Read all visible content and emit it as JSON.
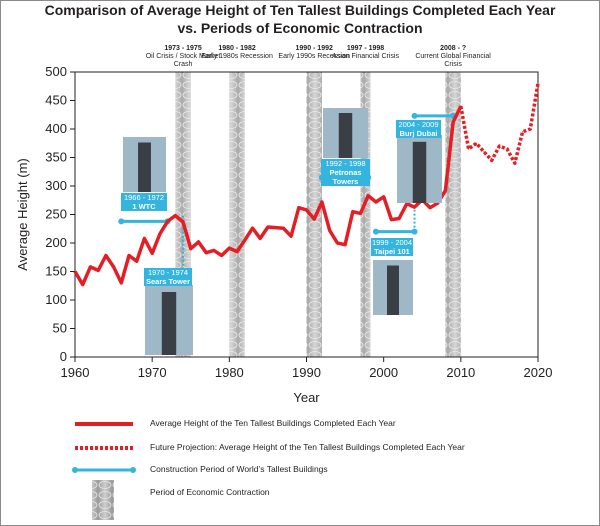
{
  "chart_data": {
    "type": "line",
    "title_line1": "Comparison of Average Height of Ten Tallest Buildings Completed Each Year",
    "title_line2": "vs. Periods of Economic Contraction",
    "xlabel": "Year",
    "ylabel": "Average Height (m)",
    "xlim": [
      1960,
      2020
    ],
    "ylim": [
      0,
      500
    ],
    "x_ticks": [
      "1960",
      "1970",
      "1980",
      "1990",
      "2000",
      "2010",
      "2020"
    ],
    "y_ticks": [
      "0",
      "50",
      "100",
      "150",
      "200",
      "250",
      "300",
      "350",
      "400",
      "450",
      "500"
    ],
    "series": [
      {
        "name": "Average Height of the Ten Tallest Buildings Completed Each Year",
        "color": "#e31e24",
        "style": "solid",
        "x": [
          1960,
          1961,
          1962,
          1963,
          1964,
          1965,
          1966,
          1967,
          1968,
          1969,
          1970,
          1971,
          1972,
          1973,
          1974,
          1975,
          1976,
          1977,
          1978,
          1979,
          1980,
          1981,
          1982,
          1983,
          1984,
          1985,
          1986,
          1987,
          1988,
          1989,
          1990,
          1991,
          1992,
          1993,
          1994,
          1995,
          1996,
          1997,
          1998,
          1999,
          2000,
          2001,
          2002,
          2003,
          2004,
          2005,
          2006,
          2007,
          2008,
          2009,
          2010
        ],
        "values": [
          150,
          127,
          158,
          152,
          178,
          158,
          130,
          178,
          168,
          208,
          182,
          216,
          238,
          248,
          237,
          190,
          202,
          183,
          187,
          178,
          191,
          185,
          205,
          226,
          208,
          228,
          227,
          226,
          212,
          262,
          258,
          242,
          272,
          222,
          200,
          197,
          255,
          252,
          283,
          272,
          281,
          241,
          243,
          269,
          263,
          276,
          262,
          270,
          292,
          412,
          440
        ]
      },
      {
        "name": "Future Projection: Average Height of the Ten Tallest Buildings Completed Each Year",
        "color": "#e31e24",
        "style": "dotted",
        "x": [
          2010,
          2011,
          2012,
          2013,
          2014,
          2015,
          2016,
          2017,
          2018,
          2019,
          2020
        ],
        "values": [
          440,
          365,
          375,
          360,
          345,
          370,
          365,
          340,
          395,
          400,
          480
        ]
      }
    ],
    "economic_contraction_periods": [
      {
        "label": "Oil Crisis / Stock Market Crash",
        "years": "1973 - 1975",
        "start": 1973,
        "end": 1975
      },
      {
        "label": "Early 1980s Recession",
        "years": "1980 - 1982",
        "start": 1980,
        "end": 1982
      },
      {
        "label": "Early 1990s Recession",
        "years": "1990 - 1992",
        "start": 1990,
        "end": 1992
      },
      {
        "label": "Asian Financial Crisis",
        "years": "1997 - 1998",
        "start": 1997,
        "end": 1998
      },
      {
        "label": "Current Global Financial Crisis",
        "years": "2008 - ?",
        "start": 2008,
        "end": 2010
      }
    ],
    "construction_periods": [
      {
        "building": "1 WTC",
        "years": "1966 - 1972",
        "start": 1966,
        "end": 1972,
        "height": 238
      },
      {
        "building": "Sears Tower",
        "years": "1970 - 1974",
        "start": 1970,
        "end": 1974,
        "height": 125
      },
      {
        "building": "Petronas Towers",
        "years": "1992 - 1998",
        "start": 1992,
        "end": 1998,
        "height": 315
      },
      {
        "building": "Taipei 101",
        "years": "1999 - 2004",
        "start": 1999,
        "end": 2004,
        "height": 220
      },
      {
        "building": "Burj Dubai",
        "years": "2004 - 2009",
        "start": 2004,
        "end": 2009,
        "height": 423
      }
    ],
    "legend": [
      "Average Height of the Ten Tallest Buildings Completed Each Year",
      "Future Projection: Average Height of the Ten Tallest Buildings Completed Each Year",
      "Construction Period of World’s Tallest Buildings",
      "Period of Economic Contraction"
    ]
  }
}
